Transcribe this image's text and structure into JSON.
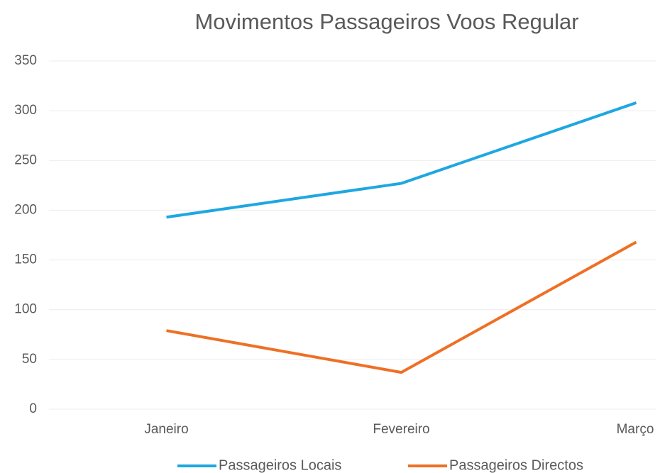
{
  "chart_data": {
    "type": "line",
    "title": "Movimentos Passageiros Voos Regular",
    "categories": [
      "Janeiro",
      "Fevereiro",
      "Março"
    ],
    "series": [
      {
        "name": "Passageiros Locais",
        "color": "#1ea7e1",
        "values": [
          193,
          227,
          308
        ]
      },
      {
        "name": "Passageiros Directos",
        "color": "#ee7025",
        "values": [
          79,
          37,
          168
        ]
      }
    ],
    "ylim": [
      0,
      350
    ],
    "yticks": [
      0,
      50,
      100,
      150,
      200,
      250,
      300,
      350
    ],
    "grid": true,
    "legend": "bottom"
  }
}
